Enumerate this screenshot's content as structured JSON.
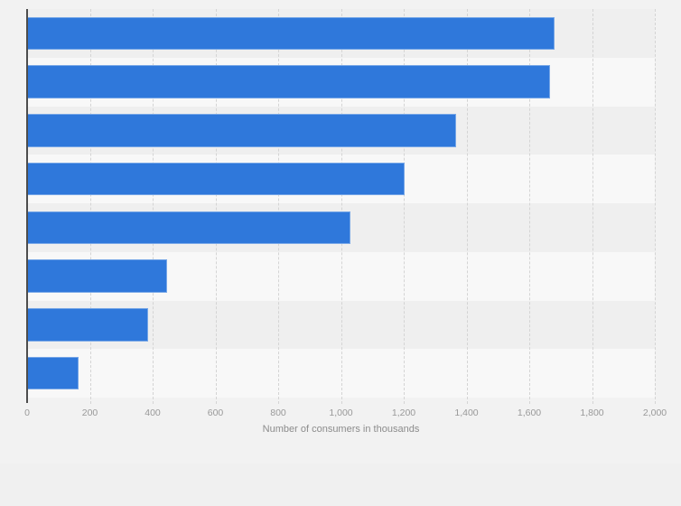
{
  "chart_data": {
    "type": "bar",
    "orientation": "horizontal",
    "title": "",
    "xlabel": "Number of consumers in thousands",
    "ylabel": "",
    "categories": [
      "",
      "",
      "",
      "",
      "",
      "",
      "",
      ""
    ],
    "values": [
      1680,
      1665,
      1368,
      1203,
      1031,
      445,
      386,
      165
    ],
    "xlim": [
      0,
      2000
    ],
    "x_ticks": [
      0,
      200,
      400,
      600,
      800,
      1000,
      1200,
      1400,
      1600,
      1800,
      2000
    ],
    "x_tick_labels": [
      "0",
      "200",
      "400",
      "600",
      "800",
      "1,000",
      "1,200",
      "1,400",
      "1,600",
      "1,800",
      "2,000"
    ],
    "grid": "vertical-dashed",
    "legend": "none",
    "zebra_rows": true
  },
  "colors": {
    "page_bg": "#f2f2f2",
    "stripe_odd": "#efefef",
    "stripe_even": "#f8f8f8",
    "bar": "#2f78db",
    "axis_line": "#4d4d4d",
    "gridline": "#d4d4d4",
    "tick_label": "#999999",
    "axis_title": "#8c8c8c",
    "footer_band": "#f0f0f0"
  }
}
